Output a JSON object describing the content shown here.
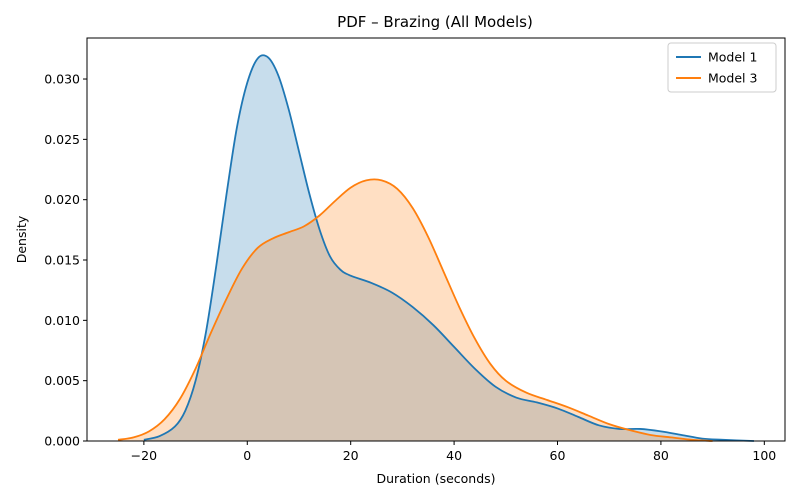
{
  "chart_data": {
    "type": "area",
    "title": "PDF – Brazing (All Models)",
    "xlabel": "Duration (seconds)",
    "ylabel": "Density",
    "xlim": [
      -31,
      104
    ],
    "ylim": [
      0,
      0.0334
    ],
    "xticks": [
      -20,
      0,
      20,
      40,
      60,
      80,
      100
    ],
    "yticks": [
      0,
      0.005,
      0.01,
      0.015,
      0.02,
      0.025,
      0.03
    ],
    "xtick_labels": [
      "−20",
      "0",
      "20",
      "40",
      "60",
      "80",
      "100"
    ],
    "ytick_labels": [
      "0.000",
      "0.005",
      "0.010",
      "0.015",
      "0.020",
      "0.025",
      "0.030"
    ],
    "grid": false,
    "legend_position": "top-right",
    "series": [
      {
        "name": "Model 1",
        "color": "#1f77b4",
        "fill_color": "#c6dbef",
        "x": [
          -20,
          -17,
          -14,
          -12,
          -10,
          -8,
          -6,
          -4,
          -2,
          0,
          2,
          4,
          6,
          8,
          10,
          12,
          14,
          16,
          18,
          20,
          24,
          28,
          32,
          36,
          40,
          44,
          48,
          52,
          56,
          60,
          64,
          68,
          72,
          76,
          80,
          84,
          88,
          92,
          98
        ],
        "y": [
          0.0001,
          0.0004,
          0.0012,
          0.0025,
          0.005,
          0.009,
          0.0145,
          0.0205,
          0.026,
          0.0297,
          0.0317,
          0.0318,
          0.0303,
          0.0275,
          0.024,
          0.0205,
          0.0175,
          0.0153,
          0.0142,
          0.0137,
          0.0131,
          0.0123,
          0.0111,
          0.0096,
          0.0078,
          0.006,
          0.0045,
          0.0036,
          0.0032,
          0.0027,
          0.002,
          0.0013,
          0.001,
          0.001,
          0.0008,
          0.0005,
          0.0002,
          0.0001,
          0.0
        ]
      },
      {
        "name": "Model 3",
        "color": "#ff7f0e",
        "fill_color": "#ffdab9",
        "x": [
          -25,
          -22,
          -19,
          -16,
          -13,
          -10,
          -7,
          -4,
          -1,
          2,
          5,
          8,
          11,
          14,
          17,
          20,
          23,
          26,
          29,
          32,
          35,
          38,
          41,
          44,
          47,
          50,
          54,
          58,
          62,
          66,
          70,
          74,
          78,
          82,
          86,
          90
        ],
        "y": [
          0.0001,
          0.0003,
          0.0008,
          0.0018,
          0.0035,
          0.006,
          0.009,
          0.0118,
          0.0143,
          0.016,
          0.0168,
          0.0173,
          0.0178,
          0.0187,
          0.0199,
          0.021,
          0.0216,
          0.0216,
          0.0209,
          0.0193,
          0.0169,
          0.014,
          0.0111,
          0.0085,
          0.0064,
          0.005,
          0.004,
          0.0034,
          0.0028,
          0.0021,
          0.0014,
          0.0009,
          0.0005,
          0.0003,
          0.0001,
          0.0
        ]
      }
    ]
  }
}
